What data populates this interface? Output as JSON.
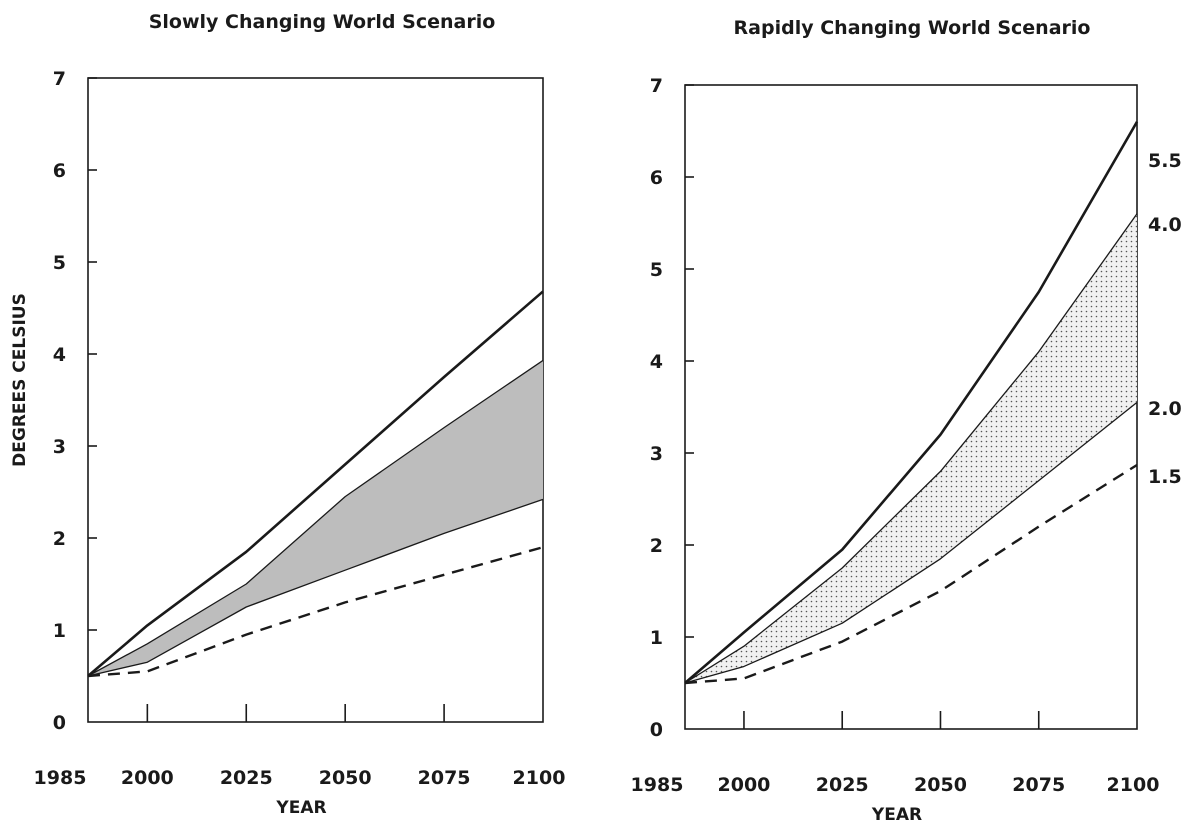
{
  "chart_data": [
    {
      "type": "line",
      "title": "Slowly Changing World Scenario",
      "xlabel": "YEAR",
      "ylabel": "DEGREES CELSIUS",
      "xlim": [
        1985,
        2100
      ],
      "ylim": [
        0,
        7
      ],
      "x_ticks": [
        1985,
        2000,
        2025,
        2050,
        2075,
        2100
      ],
      "y_ticks": [
        0,
        1,
        2,
        3,
        4,
        5,
        6,
        7
      ],
      "grid": false,
      "legend": "none",
      "series": [
        {
          "style": "solid-bold",
          "x": [
            1985,
            2000,
            2025,
            2050,
            2075,
            2100
          ],
          "y": [
            0.5,
            1.05,
            1.85,
            2.8,
            3.75,
            4.68
          ]
        },
        {
          "style": "band-upper",
          "x": [
            1985,
            2000,
            2025,
            2050,
            2075,
            2100
          ],
          "y": [
            0.5,
            0.85,
            1.5,
            2.45,
            3.2,
            3.93
          ]
        },
        {
          "style": "band-lower",
          "x": [
            1985,
            2000,
            2025,
            2050,
            2075,
            2100
          ],
          "y": [
            0.5,
            0.65,
            1.25,
            1.65,
            2.05,
            2.42
          ]
        },
        {
          "style": "dashed",
          "x": [
            1985,
            2000,
            2025,
            2050,
            2075,
            2100
          ],
          "y": [
            0.5,
            0.55,
            0.95,
            1.3,
            1.6,
            1.9
          ]
        }
      ],
      "band_fill": "#bdbdbd",
      "end_labels": []
    },
    {
      "type": "line",
      "title": "Rapidly Changing World Scenario",
      "xlabel": "YEAR",
      "ylabel": "",
      "xlim": [
        1985,
        2100
      ],
      "ylim": [
        0,
        7
      ],
      "x_ticks": [
        1985,
        2000,
        2025,
        2050,
        2075,
        2100
      ],
      "y_ticks": [
        0,
        1,
        2,
        3,
        4,
        5,
        6,
        7
      ],
      "grid": false,
      "legend": "none",
      "series": [
        {
          "style": "solid-bold",
          "x": [
            1985,
            2000,
            2025,
            2050,
            2075,
            2100
          ],
          "y": [
            0.5,
            1.05,
            1.95,
            3.2,
            4.75,
            6.6
          ]
        },
        {
          "style": "band-upper",
          "x": [
            1985,
            2000,
            2025,
            2050,
            2075,
            2100
          ],
          "y": [
            0.5,
            0.9,
            1.75,
            2.8,
            4.1,
            5.6
          ]
        },
        {
          "style": "band-lower",
          "x": [
            1985,
            2000,
            2025,
            2050,
            2075,
            2100
          ],
          "y": [
            0.5,
            0.68,
            1.15,
            1.85,
            2.7,
            3.55
          ]
        },
        {
          "style": "dashed",
          "x": [
            1985,
            2000,
            2025,
            2050,
            2075,
            2100
          ],
          "y": [
            0.5,
            0.55,
            0.95,
            1.5,
            2.2,
            2.87
          ]
        }
      ],
      "band_fill": "#e6e6e6",
      "end_labels": [
        "5.5",
        "4.0",
        "2.0",
        "1.5"
      ]
    }
  ]
}
